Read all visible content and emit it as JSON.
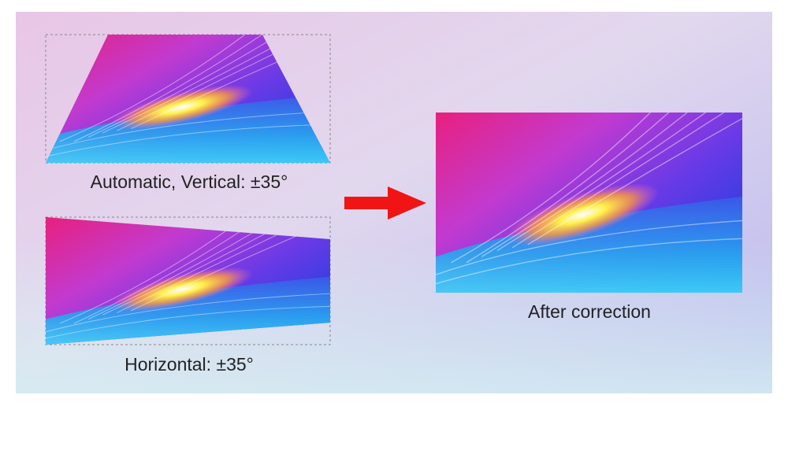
{
  "captions": {
    "vertical": "Automatic, Vertical: ±35°",
    "horizontal": "Horizontal: ±35°",
    "after": "After correction"
  }
}
